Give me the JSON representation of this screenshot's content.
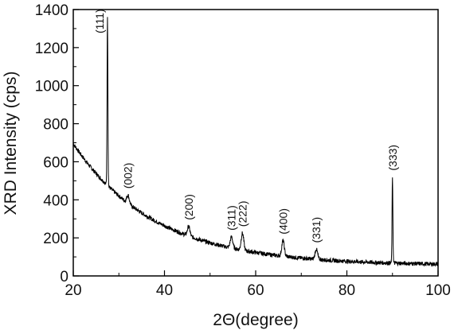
{
  "chart_data": {
    "type": "line",
    "title": "",
    "xlabel": "2Θ(degree)",
    "ylabel": "XRD Intensity (cps)",
    "xlim": [
      20,
      100
    ],
    "ylim": [
      0,
      1400
    ],
    "x_ticks": [
      "20",
      "40",
      "60",
      "80",
      "100"
    ],
    "y_ticks": [
      "0",
      "200",
      "400",
      "600",
      "800",
      "1000",
      "1200",
      "1400"
    ],
    "grid": false,
    "line_color": "#000000",
    "background": {
      "type": "exponential_decay",
      "offset": 55,
      "amplitude": 640,
      "rate": 0.056
    },
    "peaks": [
      {
        "label": "(111)",
        "x": 27.5,
        "y": 1370
      },
      {
        "label": "(002)",
        "x": 32.0,
        "y": 425
      },
      {
        "label": "(200)",
        "x": 45.3,
        "y": 260
      },
      {
        "label": "(311)",
        "x": 54.7,
        "y": 205
      },
      {
        "label": "(222)",
        "x": 57.1,
        "y": 225
      },
      {
        "label": "(400)",
        "x": 66.0,
        "y": 185
      },
      {
        "label": "(331)",
        "x": 73.3,
        "y": 140
      },
      {
        "label": "(333)",
        "x": 90.0,
        "y": 520
      }
    ]
  }
}
